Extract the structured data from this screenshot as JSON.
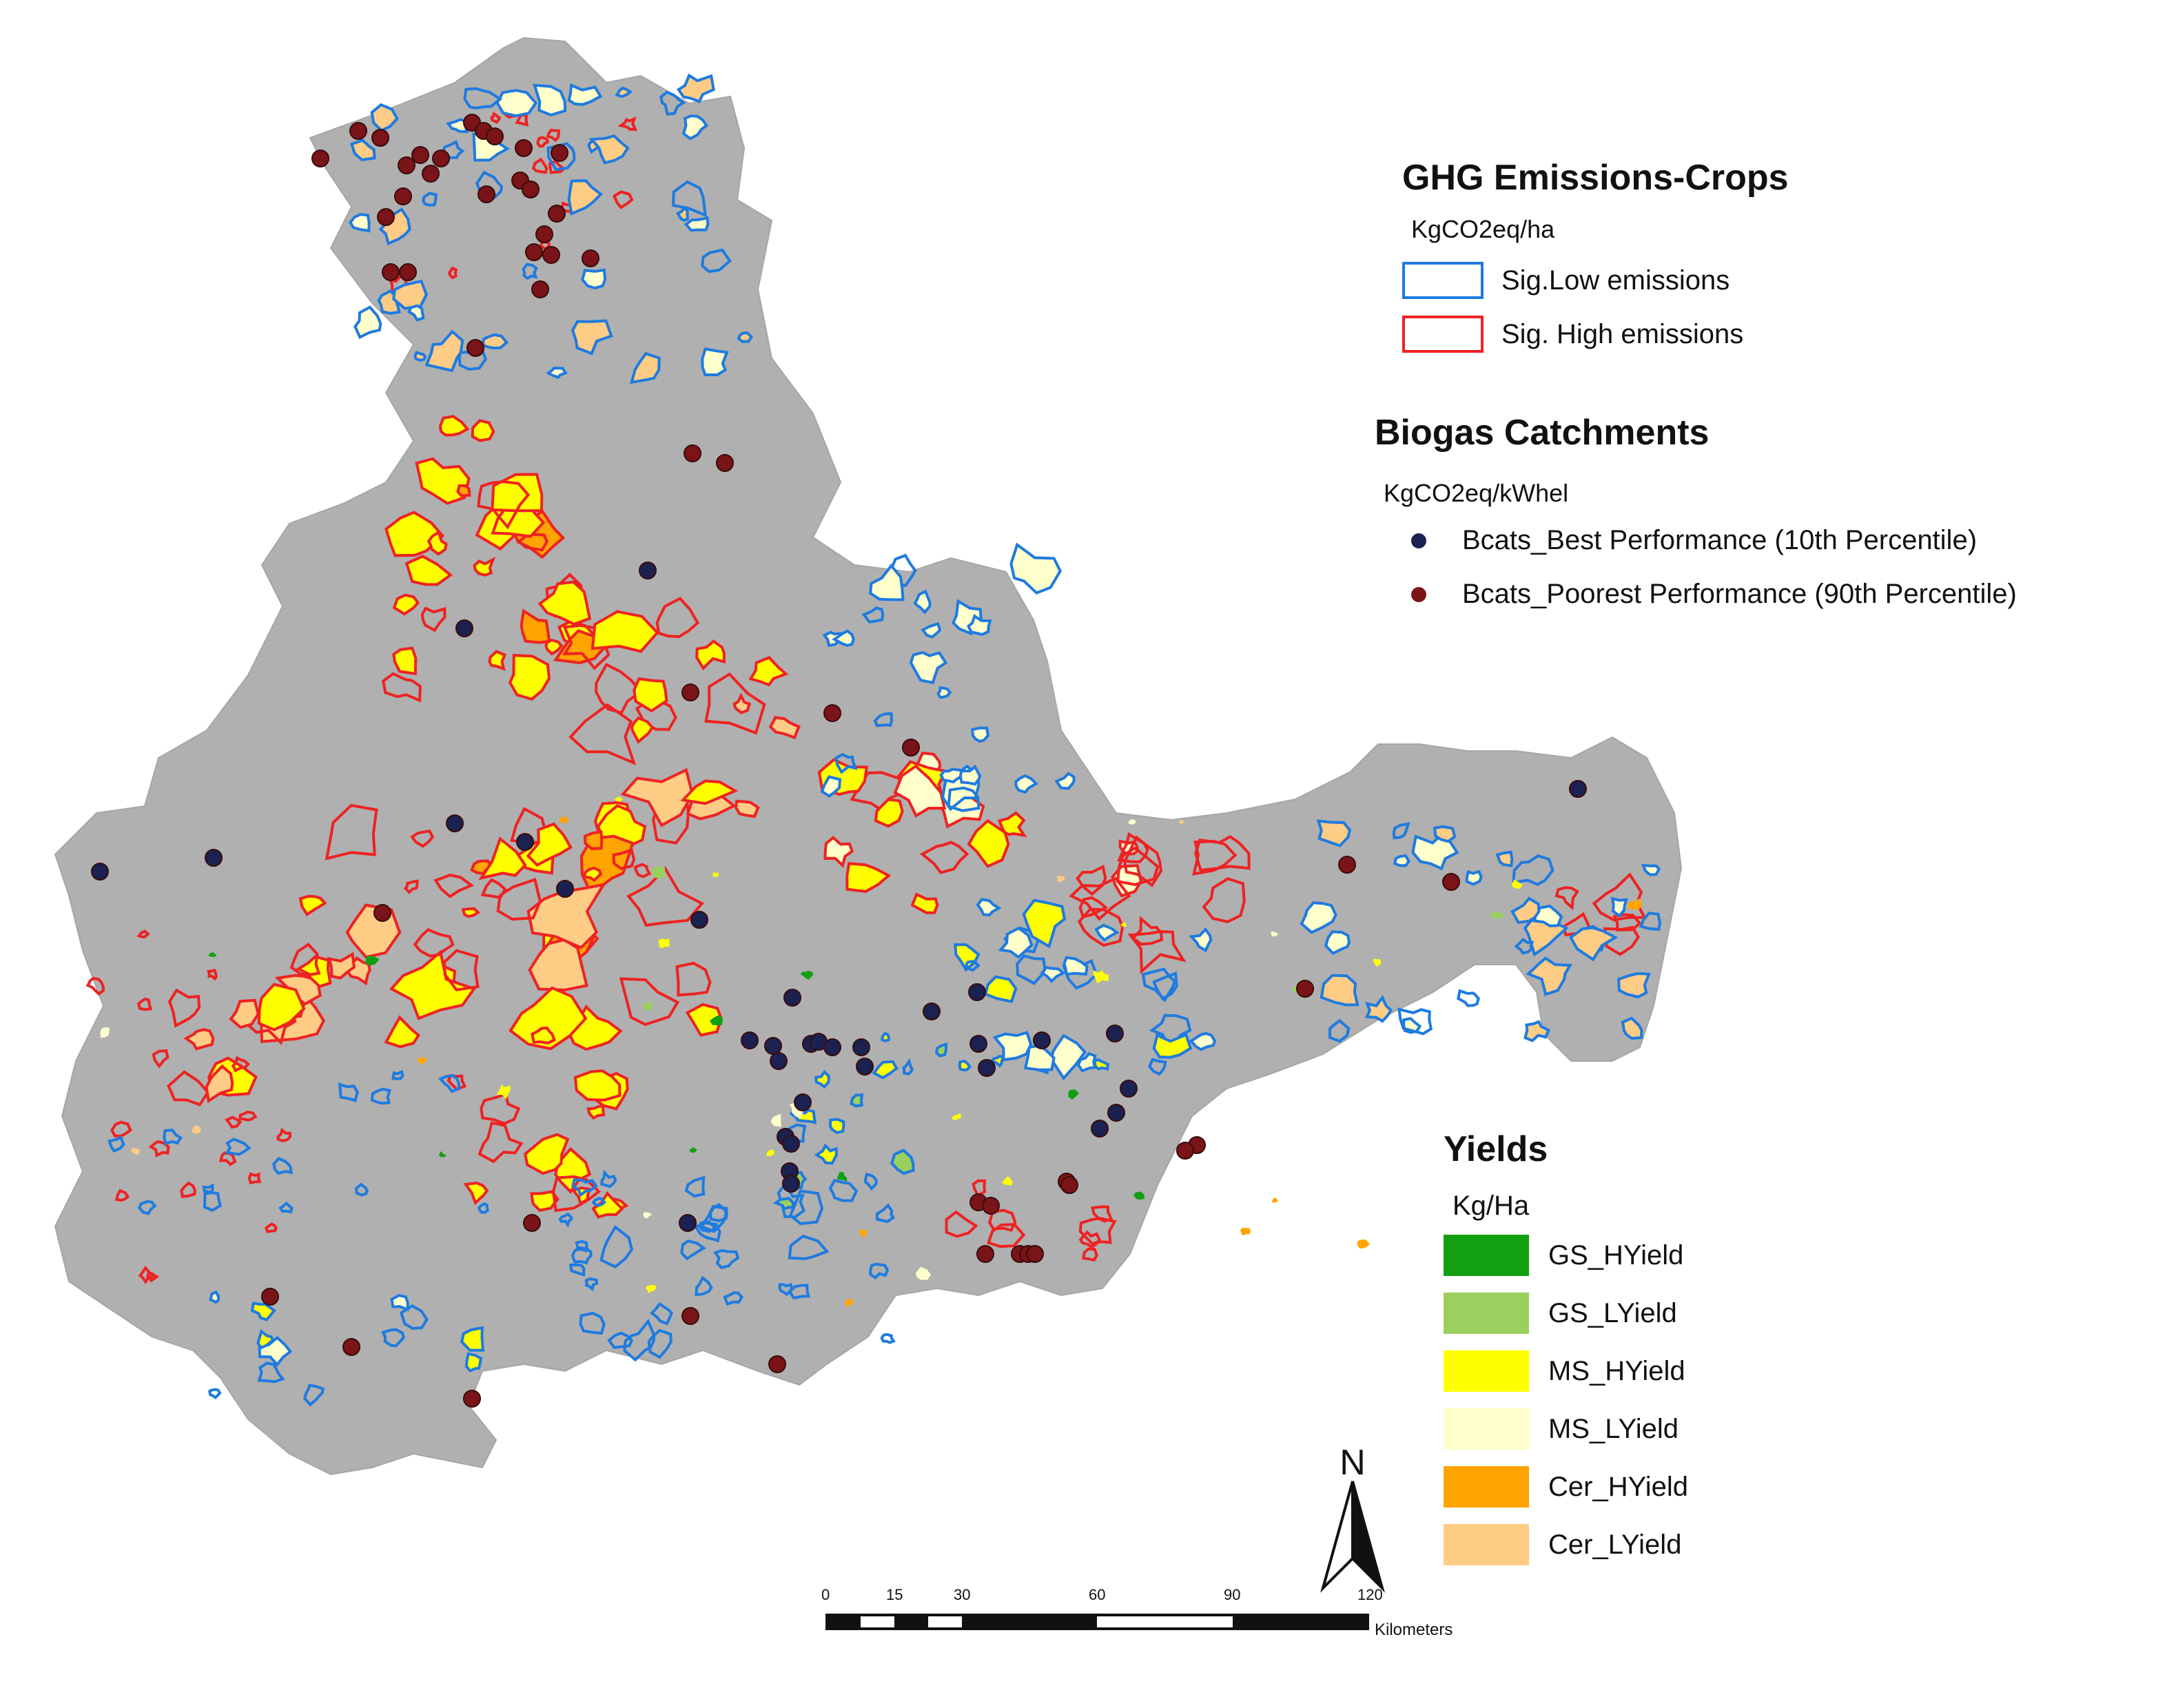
{
  "legend_emissions": {
    "title": "GHG Emissions-Crops",
    "unit": "KgCO2eq/ha",
    "items": [
      {
        "label": "Sig.Low emissions",
        "color": "#1e7be0"
      },
      {
        "label": "Sig. High emissions",
        "color": "#ee2222"
      }
    ]
  },
  "legend_biogas": {
    "title": "Biogas Catchments",
    "unit": "KgCO2eq/kWhel",
    "items": [
      {
        "label": "Bcats_Best Performance (10th Percentile)",
        "color": "#1b2150"
      },
      {
        "label": "Bcats_Poorest Performance (90th Percentile)",
        "color": "#7a1418"
      }
    ]
  },
  "legend_yields": {
    "title": "Yields",
    "unit": "Kg/Ha",
    "items": [
      {
        "label": "GS_HYield",
        "color": "#12a012"
      },
      {
        "label": "GS_LYield",
        "color": "#9bcf5e"
      },
      {
        "label": "MS_HYield",
        "color": "#ffff00"
      },
      {
        "label": "MS_LYield",
        "color": "#ffffcc"
      },
      {
        "label": "Cer_HYield",
        "color": "#ffa400"
      },
      {
        "label": "Cer_LYield",
        "color": "#ffcc85"
      }
    ]
  },
  "north_arrow": {
    "label": "N"
  },
  "scale_bar": {
    "ticks": [
      "0",
      "15",
      "30",
      "60",
      "90",
      "120"
    ],
    "unit": "Kilometers"
  },
  "colors": {
    "region_fill": "#b0b0b0",
    "low_emission_outline": "#1e7be0",
    "high_emission_outline": "#ee2222"
  }
}
